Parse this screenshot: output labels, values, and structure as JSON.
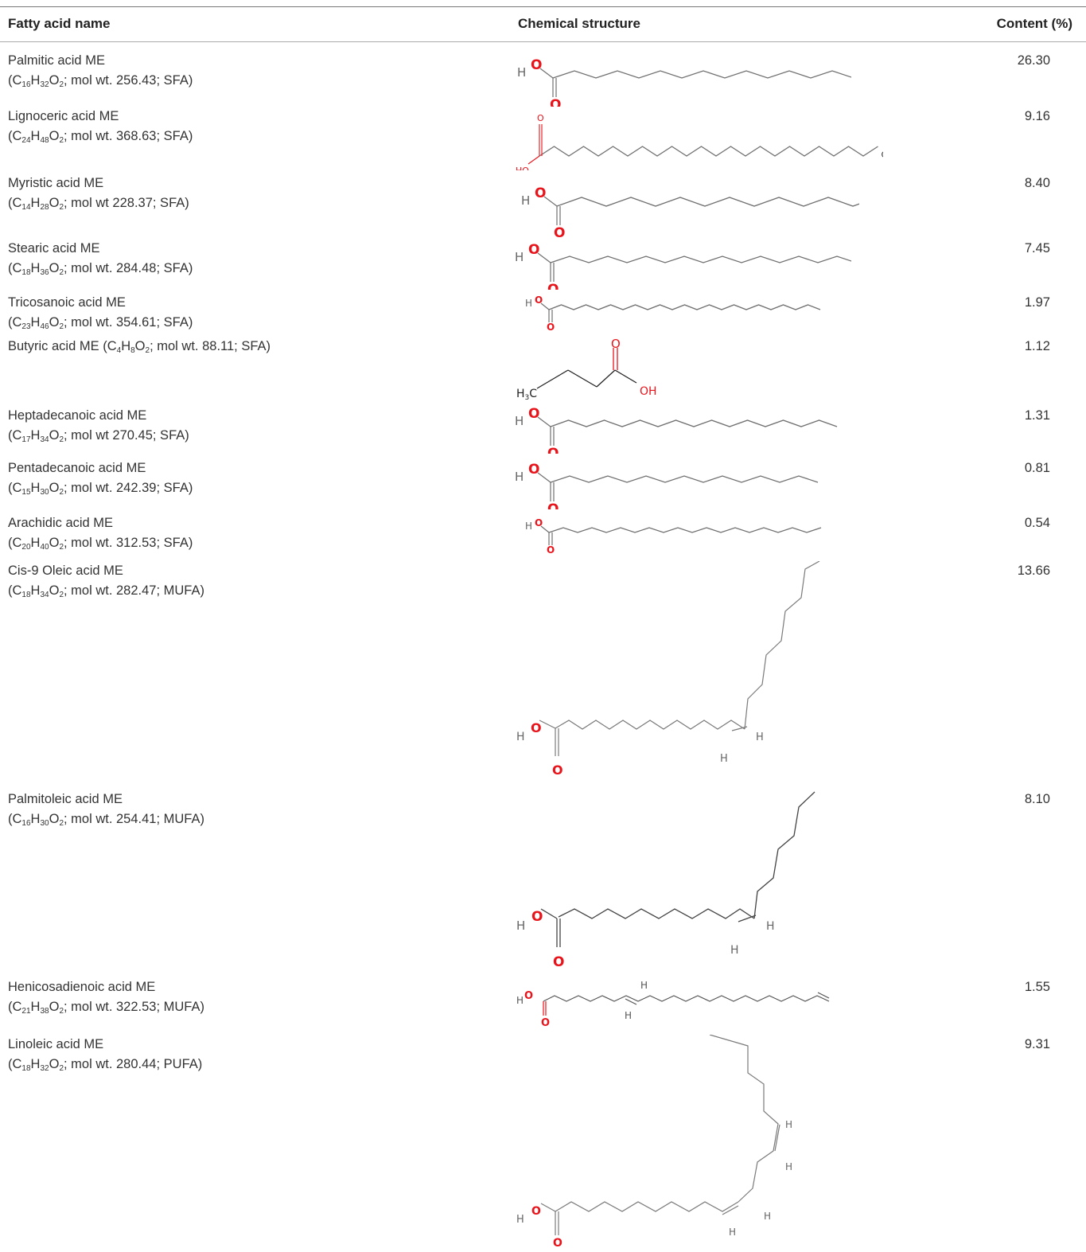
{
  "table": {
    "headers": {
      "name": "Fatty acid name",
      "structure": "Chemical structure",
      "content": "Content (%)"
    },
    "rows": [
      {
        "line1": "Palmitic acid ME",
        "c": "C",
        "c_n": "16",
        "h": "H",
        "h_n": "32",
        "o": "O",
        "o_n": "2",
        "rest": "; mol wt. 256.43; SFA)",
        "content": "26.30"
      },
      {
        "line1": "Lignoceric acid ME",
        "c": "C",
        "c_n": "24",
        "h": "H",
        "h_n": "48",
        "o": "O",
        "o_n": "2",
        "rest": "; mol wt. 368.63; SFA)",
        "content": "9.16"
      },
      {
        "line1": "Myristic acid ME",
        "c": "C",
        "c_n": "14",
        "h": "H",
        "h_n": "28",
        "o": "O",
        "o_n": "2",
        "rest": "; mol wt 228.37; SFA)",
        "content": "8.40"
      },
      {
        "line1": "Stearic acid ME",
        "c": "C",
        "c_n": "18",
        "h": "H",
        "h_n": "36",
        "o": "O",
        "o_n": "2",
        "rest": "; mol wt. 284.48; SFA)",
        "content": "7.45"
      },
      {
        "line1": "Tricosanoic acid ME",
        "c": "C",
        "c_n": "23",
        "h": "H",
        "h_n": "46",
        "o": "O",
        "o_n": "2",
        "rest": "; mol wt. 354.61; SFA)",
        "content": "1.97"
      },
      {
        "line1": "Butyric acid ME (",
        "c": "C",
        "c_n": "4",
        "h": "H",
        "h_n": "8",
        "o": "O",
        "o_n": "2",
        "rest": "; mol wt. 88.11; SFA)",
        "content": "1.12"
      },
      {
        "line1": "Heptadecanoic acid ME",
        "c": "C",
        "c_n": "17",
        "h": "H",
        "h_n": "34",
        "o": "O",
        "o_n": "2",
        "rest": "; mol wt 270.45; SFA)",
        "content": "1.31"
      },
      {
        "line1": "Pentadecanoic acid ME",
        "c": "C",
        "c_n": "15",
        "h": "H",
        "h_n": "30",
        "o": "O",
        "o_n": "2",
        "rest": "; mol wt. 242.39; SFA)",
        "content": "0.81"
      },
      {
        "line1": "Arachidic acid ME",
        "c": "C",
        "c_n": "20",
        "h": "H",
        "h_n": "40",
        "o": "O",
        "o_n": "2",
        "rest": "; mol wt. 312.53; SFA)",
        "content": "0.54"
      },
      {
        "line1": "Cis-9 Oleic acid ME",
        "c": "C",
        "c_n": "18",
        "h": "H",
        "h_n": "34",
        "o": "O",
        "o_n": "2",
        "rest": "; mol wt. 282.47; MUFA)",
        "content": "13.66"
      },
      {
        "line1": "Palmitoleic acid ME",
        "c": "C",
        "c_n": "16",
        "h": "H",
        "h_n": "30",
        "o": "O",
        "o_n": "2",
        "rest": "; mol wt. 254.41; MUFA)",
        "content": "8.10"
      },
      {
        "line1": "Henicosadienoic acid ME",
        "c": "C",
        "c_n": "21",
        "h": "H",
        "h_n": "38",
        "o": "O",
        "o_n": "2",
        "rest": "; mol wt. 322.53; MUFA)",
        "content": "1.55"
      },
      {
        "line1": "Linoleic acid ME",
        "c": "C",
        "c_n": "18",
        "h": "H",
        "h_n": "32",
        "o": "O",
        "o_n": "2",
        "rest": "; mol wt. 280.44; PUFA)",
        "content": "9.31"
      }
    ]
  },
  "structure_atoms": {
    "h": "H",
    "o": "O",
    "ho": "HO",
    "oh": "OH",
    "ch3": "CH",
    "ch3_n": "3",
    "h3c": "H",
    "h3c_n": "3",
    "h3c_c": "C"
  },
  "colors": {
    "oxygen": "#e8141b",
    "bond": "#6f6f6f",
    "text": "#333333"
  }
}
